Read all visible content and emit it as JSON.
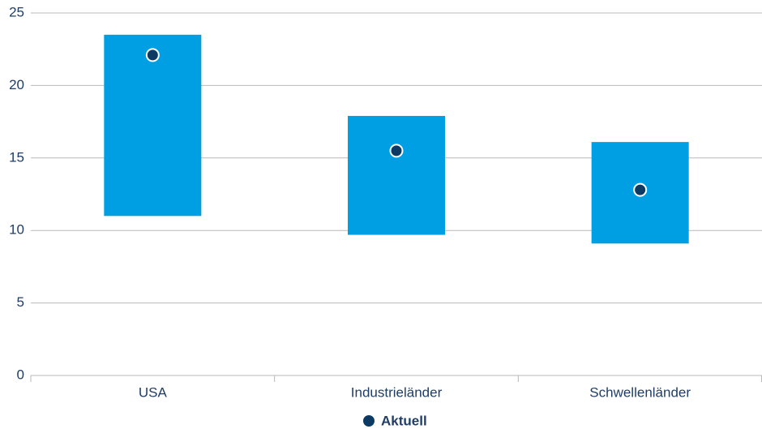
{
  "chart_data": {
    "type": "range",
    "categories": [
      "USA",
      "Industrieländer",
      "Schwellenländer"
    ],
    "ranges": {
      "low": [
        11,
        9.7,
        9.1
      ],
      "high": [
        23.5,
        17.9,
        16.1
      ],
      "color": "#009fe3"
    },
    "series": [
      {
        "name": "Aktuell",
        "color": "#0d3a63",
        "values": [
          22.1,
          15.5,
          12.8
        ]
      }
    ],
    "ylim": [
      0,
      25
    ],
    "yticks": [
      0,
      5,
      10,
      15,
      20,
      25
    ],
    "grid": true,
    "legend": "bottom"
  }
}
